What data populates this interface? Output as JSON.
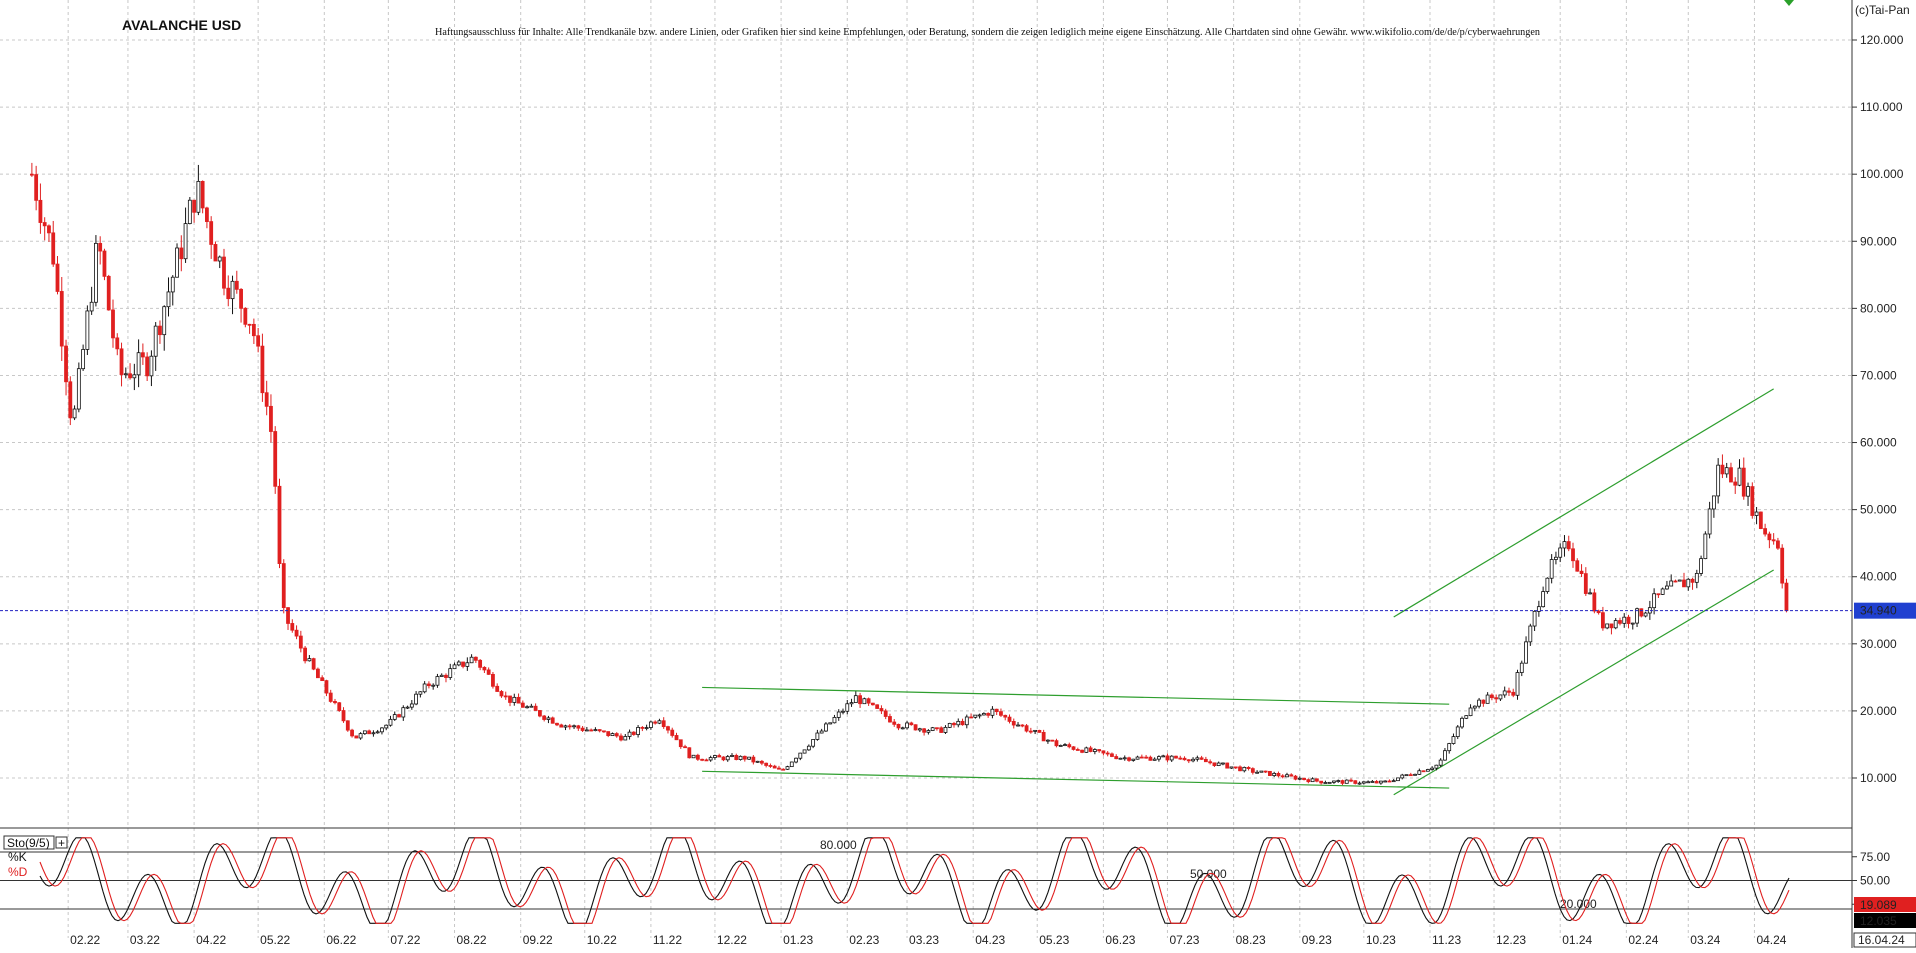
{
  "header": {
    "title": "AVALANCHE USD",
    "disclaimer": "Haftungsausschluss für Inhalte: Alle Trendkanäle bzw. andere Linien, oder Grafiken hier sind keine Empfehlungen, oder Beratung, sondern die zeigen lediglich meine eigene Einschätzung. Alle Chartdaten sind ohne Gewähr. www.wikifolio.com/de/de/p/cyberwaehrungen",
    "copyright": "(c)Tai-Pan"
  },
  "colors": {
    "up": "#111111",
    "down": "#e02020",
    "trendline": "#2e9e2e",
    "current_price_line": "#2020c0",
    "price_box": "#2040d0",
    "grid": "#c8c8c8",
    "k_line": "#111111",
    "d_line": "#e02020"
  },
  "chart_data": [
    {
      "type": "candlestick",
      "title": "AVALANCHE USD",
      "x_ticks": [
        "02.22",
        "03.22",
        "04.22",
        "05.22",
        "06.22",
        "07.22",
        "08.22",
        "09.22",
        "10.22",
        "11.22",
        "12.22",
        "01.23",
        "02.23",
        "03.23",
        "04.23",
        "05.23",
        "06.23",
        "07.23",
        "08.23",
        "09.23",
        "10.23",
        "11.23",
        "12.23",
        "01.24",
        "02.24",
        "03.24",
        "04.24",
        "16.04.24"
      ],
      "y_ticks": [
        "10.000",
        "20.000",
        "30.000",
        "40.000",
        "50.000",
        "60.000",
        "70.000",
        "80.000",
        "90.000",
        "100.000",
        "110.000",
        "120.000"
      ],
      "ylim": [
        0,
        125
      ],
      "grid": true,
      "current_price": 34.94,
      "current_price_label": "34.940",
      "approx_closes": [
        {
          "date": "2022-01-15",
          "value": 100
        },
        {
          "date": "2022-01-25",
          "value": 88
        },
        {
          "date": "2022-02-03",
          "value": 62
        },
        {
          "date": "2022-02-15",
          "value": 90
        },
        {
          "date": "2022-02-25",
          "value": 70
        },
        {
          "date": "2022-03-10",
          "value": 72
        },
        {
          "date": "2022-03-25",
          "value": 88
        },
        {
          "date": "2022-04-02",
          "value": 98
        },
        {
          "date": "2022-04-15",
          "value": 85
        },
        {
          "date": "2022-04-28",
          "value": 78
        },
        {
          "date": "2022-05-08",
          "value": 60
        },
        {
          "date": "2022-05-12",
          "value": 35
        },
        {
          "date": "2022-05-25",
          "value": 27
        },
        {
          "date": "2022-06-15",
          "value": 16
        },
        {
          "date": "2022-07-01",
          "value": 18
        },
        {
          "date": "2022-07-20",
          "value": 24
        },
        {
          "date": "2022-08-10",
          "value": 28
        },
        {
          "date": "2022-08-25",
          "value": 22
        },
        {
          "date": "2022-09-20",
          "value": 18
        },
        {
          "date": "2022-10-20",
          "value": 16
        },
        {
          "date": "2022-11-05",
          "value": 19
        },
        {
          "date": "2022-11-20",
          "value": 13
        },
        {
          "date": "2022-12-15",
          "value": 13
        },
        {
          "date": "2023-01-01",
          "value": 11
        },
        {
          "date": "2023-01-20",
          "value": 17
        },
        {
          "date": "2023-02-05",
          "value": 22
        },
        {
          "date": "2023-02-25",
          "value": 18
        },
        {
          "date": "2023-03-15",
          "value": 17
        },
        {
          "date": "2023-04-10",
          "value": 20
        },
        {
          "date": "2023-05-10",
          "value": 15
        },
        {
          "date": "2023-06-10",
          "value": 13
        },
        {
          "date": "2023-07-10",
          "value": 13
        },
        {
          "date": "2023-08-10",
          "value": 11
        },
        {
          "date": "2023-09-10",
          "value": 9.5
        },
        {
          "date": "2023-10-10",
          "value": 9.3
        },
        {
          "date": "2023-11-05",
          "value": 12
        },
        {
          "date": "2023-11-20",
          "value": 21
        },
        {
          "date": "2023-12-10",
          "value": 23
        },
        {
          "date": "2023-12-25",
          "value": 40
        },
        {
          "date": "2024-01-05",
          "value": 45
        },
        {
          "date": "2024-01-20",
          "value": 33
        },
        {
          "date": "2024-02-05",
          "value": 34
        },
        {
          "date": "2024-02-20",
          "value": 38
        },
        {
          "date": "2024-03-05",
          "value": 40
        },
        {
          "date": "2024-03-15",
          "value": 56
        },
        {
          "date": "2024-03-25",
          "value": 55
        },
        {
          "date": "2024-04-05",
          "value": 47
        },
        {
          "date": "2024-04-12",
          "value": 45
        },
        {
          "date": "2024-04-16",
          "value": 34.94
        }
      ],
      "trend_channels": [
        {
          "name": "sideways-channel-upper",
          "points": [
            {
              "date": "2022-11-25",
              "value": 23.5
            },
            {
              "date": "2023-11-10",
              "value": 21
            }
          ]
        },
        {
          "name": "sideways-channel-lower",
          "points": [
            {
              "date": "2022-11-25",
              "value": 11
            },
            {
              "date": "2023-11-10",
              "value": 8.5
            }
          ]
        },
        {
          "name": "rising-channel-upper",
          "points": [
            {
              "date": "2023-10-15",
              "value": 34
            },
            {
              "date": "2024-04-10",
              "value": 68
            }
          ]
        },
        {
          "name": "rising-channel-lower",
          "points": [
            {
              "date": "2023-10-15",
              "value": 7.5
            },
            {
              "date": "2024-04-10",
              "value": 41
            }
          ]
        }
      ]
    },
    {
      "type": "line",
      "title": "Sto(9/5)",
      "ylim": [
        0,
        100
      ],
      "levels": [
        80,
        50,
        20
      ],
      "y_ticks": [
        "75.00",
        "50.00",
        "25.00"
      ],
      "level_labels": [
        "80.000",
        "50.000",
        "20.000"
      ],
      "series": [
        {
          "name": "%K",
          "last_value_label": "12.035"
        },
        {
          "name": "%D",
          "last_value_label": "19.089"
        }
      ]
    }
  ]
}
